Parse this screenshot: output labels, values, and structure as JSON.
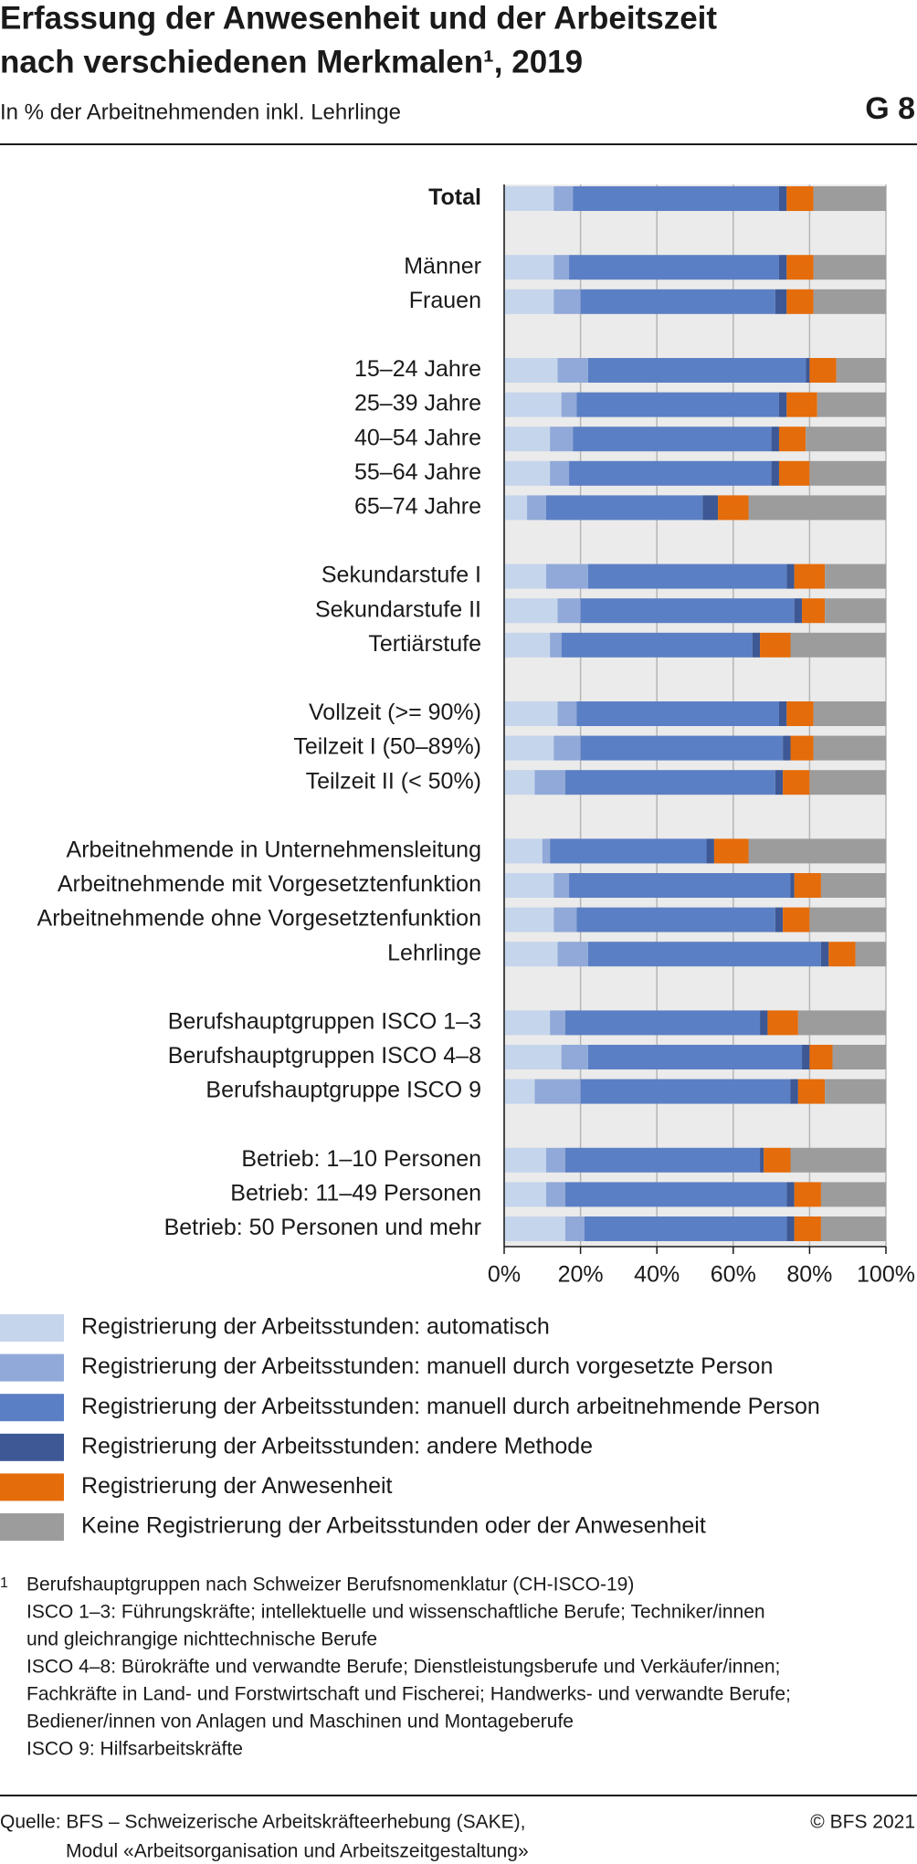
{
  "header": {
    "title": [
      "Erfassung der Anwesenheit und der Arbeitszeit",
      "nach verschiedenen Merkmalen¹, 2019"
    ],
    "subtitle": "In % der Arbeitnehmenden inkl. Lehrlinge",
    "code": "G 8"
  },
  "chart_data": {
    "type": "stacked_barh",
    "categories": [
      "Total",
      null,
      "Männer",
      "Frauen",
      null,
      "15–24 Jahre",
      "25–39 Jahre",
      "40–54 Jahre",
      "55–64 Jahre",
      "65–74 Jahre",
      null,
      "Sekundarstufe I",
      "Sekundarstufe II",
      "Tertiärstufe",
      null,
      "Vollzeit (>= 90%)",
      "Teilzeit I (50–89%)",
      "Teilzeit II (< 50%)",
      null,
      "Arbeitnehmende in Unternehmensleitung",
      "Arbeitnehmende mit Vorgesetztenfunktion",
      "Arbeitnehmende ohne Vorgesetztenfunktion",
      "Lehrlinge",
      null,
      "Berufshauptgruppen ISCO 1–3",
      "Berufshauptgruppen ISCO 4–8",
      "Berufshauptgruppe ISCO 9",
      null,
      "Betrieb: 1–10 Personen",
      "Betrieb: 11–49 Personen",
      "Betrieb: 50 Personen und mehr"
    ],
    "series": [
      {
        "name": "Registrierung der Arbeitsstunden: automatisch",
        "color": "#c5d5ec",
        "values": [
          13,
          null,
          13,
          13,
          null,
          14,
          15,
          12,
          12,
          6,
          null,
          11,
          14,
          12,
          null,
          14,
          13,
          8,
          null,
          10,
          13,
          13,
          14,
          null,
          12,
          15,
          8,
          null,
          11,
          11,
          16
        ]
      },
      {
        "name": "Registrierung der Arbeitsstunden: manuell durch vorgesetzte Person",
        "color": "#91a9d8",
        "values": [
          5,
          null,
          4,
          7,
          null,
          8,
          4,
          6,
          5,
          5,
          null,
          11,
          6,
          3,
          null,
          5,
          7,
          8,
          null,
          2,
          4,
          6,
          8,
          null,
          4,
          7,
          12,
          null,
          5,
          5,
          5
        ]
      },
      {
        "name": "Registrierung der Arbeitsstunden: manuell durch arbeitnehmende Person",
        "color": "#5b7fc4",
        "values": [
          54,
          null,
          55,
          51,
          null,
          57,
          53,
          52,
          53,
          41,
          null,
          52,
          56,
          50,
          null,
          53,
          53,
          55,
          null,
          41,
          58,
          52,
          61,
          null,
          51,
          56,
          55,
          null,
          51,
          58,
          53
        ]
      },
      {
        "name": "Registrierung der Arbeitsstunden: andere Methode",
        "color": "#3d5894",
        "values": [
          2,
          null,
          2,
          3,
          null,
          1,
          2,
          2,
          2,
          4,
          null,
          2,
          2,
          2,
          null,
          2,
          2,
          2,
          null,
          2,
          1,
          2,
          2,
          null,
          2,
          2,
          2,
          null,
          1,
          2,
          2
        ]
      },
      {
        "name": "Registrierung der Anwesenheit",
        "color": "#e46c0a",
        "values": [
          7,
          null,
          7,
          7,
          null,
          7,
          8,
          7,
          8,
          8,
          null,
          8,
          6,
          8,
          null,
          7,
          6,
          7,
          null,
          9,
          7,
          7,
          7,
          null,
          8,
          6,
          7,
          null,
          7,
          7,
          7
        ]
      },
      {
        "name": "Keine Registrierung der Arbeitsstunden oder der Anwesenheit",
        "color": "#9c9c9c",
        "values": [
          19,
          null,
          19,
          19,
          null,
          13,
          18,
          21,
          20,
          36,
          null,
          16,
          16,
          25,
          null,
          19,
          19,
          20,
          null,
          36,
          17,
          20,
          8,
          null,
          23,
          14,
          16,
          null,
          25,
          17,
          17
        ]
      }
    ],
    "xlim": [
      0,
      100
    ],
    "xticks": [
      {
        "value": 0,
        "label": "0%"
      },
      {
        "value": 20,
        "label": "20%"
      },
      {
        "value": 40,
        "label": "40%"
      },
      {
        "value": 60,
        "label": "60%"
      },
      {
        "value": 80,
        "label": "80%"
      },
      {
        "value": 100,
        "label": "100%"
      }
    ],
    "grid": true
  },
  "footnote": {
    "marker": "1",
    "lines": [
      "Berufshauptgruppen nach Schweizer Berufsnomenklatur (CH-ISCO-19)",
      "ISCO 1–3: Führungskräfte; intellektuelle und wissenschaftliche Berufe; Techniker/innen",
      "und gleichrangige nichttechnische Berufe",
      "ISCO 4–8: Bürokräfte und verwandte Berufe; Dienstleistungsberufe und Verkäufer/innen;",
      "Fachkräfte in Land- und Forstwirtschaft und Fischerei; Handwerks- und verwandte Berufe;",
      "Bediener/innen von Anlagen und Maschinen und Montageberufe",
      "ISCO 9: Hilfsarbeitskräfte"
    ]
  },
  "source": {
    "lines": [
      "Quelle: BFS – Schweizerische Arbeitskräfteerhebung (SAKE),",
      "Modul «Arbeitsorganisation und Arbeitszeitgestaltung»"
    ],
    "copyright": "© BFS 2021"
  }
}
